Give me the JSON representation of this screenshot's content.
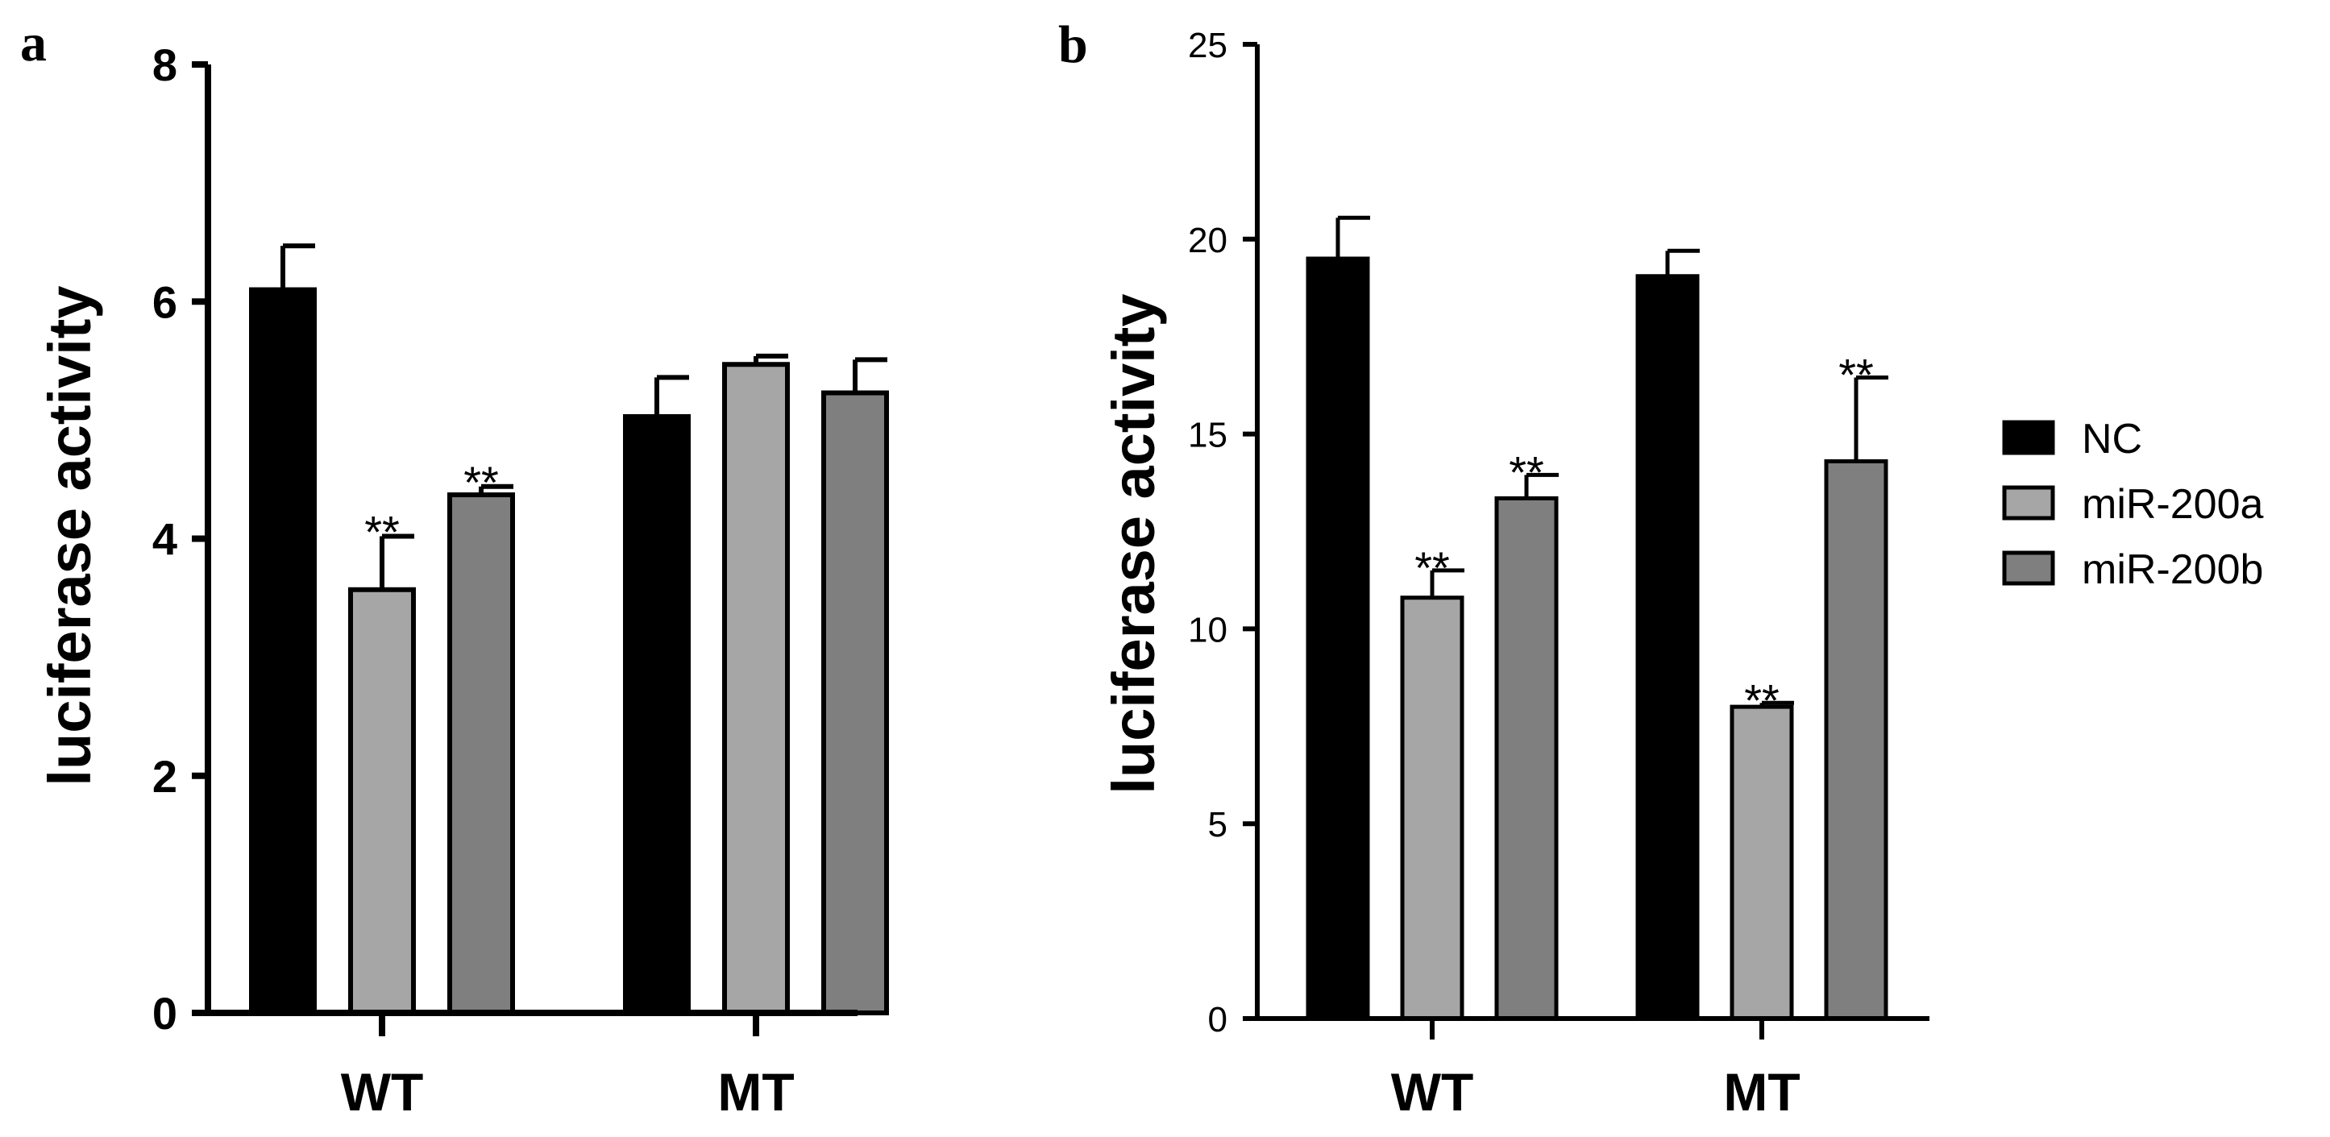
{
  "colors": {
    "NC": "#000000",
    "miR-200a": "#a6a6a6",
    "miR-200b": "#7f7f7f"
  },
  "legend": {
    "items": [
      "NC",
      "miR-200a",
      "miR-200b"
    ]
  },
  "chart_data": [
    {
      "type": "bar",
      "panel": "a",
      "ylabel": "luciferase activity",
      "categories": [
        "WT",
        "MT"
      ],
      "ylim": [
        0,
        8
      ],
      "yticks": [
        0,
        2,
        4,
        6,
        8
      ],
      "series": [
        {
          "name": "NC",
          "values": [
            6.1,
            5.03
          ],
          "errors": [
            0.37,
            0.33
          ],
          "annotations": [
            "",
            ""
          ]
        },
        {
          "name": "miR-200a",
          "values": [
            3.57,
            5.47
          ],
          "errors": [
            0.45,
            0.07
          ],
          "annotations": [
            "**",
            ""
          ]
        },
        {
          "name": "miR-200b",
          "values": [
            4.37,
            5.23
          ],
          "errors": [
            0.07,
            0.28
          ],
          "annotations": [
            "**",
            ""
          ]
        }
      ]
    },
    {
      "type": "bar",
      "panel": "b",
      "ylabel": "luciferase activity",
      "categories": [
        "WT",
        "MT"
      ],
      "ylim": [
        0,
        25
      ],
      "yticks": [
        0,
        5,
        10,
        15,
        20,
        25
      ],
      "series": [
        {
          "name": "NC",
          "values": [
            19.5,
            19.05
          ],
          "errors": [
            1.05,
            0.65
          ],
          "annotations": [
            "",
            ""
          ]
        },
        {
          "name": "miR-200a",
          "values": [
            10.8,
            8.0
          ],
          "errors": [
            0.7,
            0.1
          ],
          "annotations": [
            "**",
            "**"
          ]
        },
        {
          "name": "miR-200b",
          "values": [
            13.35,
            14.3
          ],
          "errors": [
            0.6,
            2.15
          ],
          "annotations": [
            "**",
            "**"
          ]
        }
      ]
    }
  ]
}
